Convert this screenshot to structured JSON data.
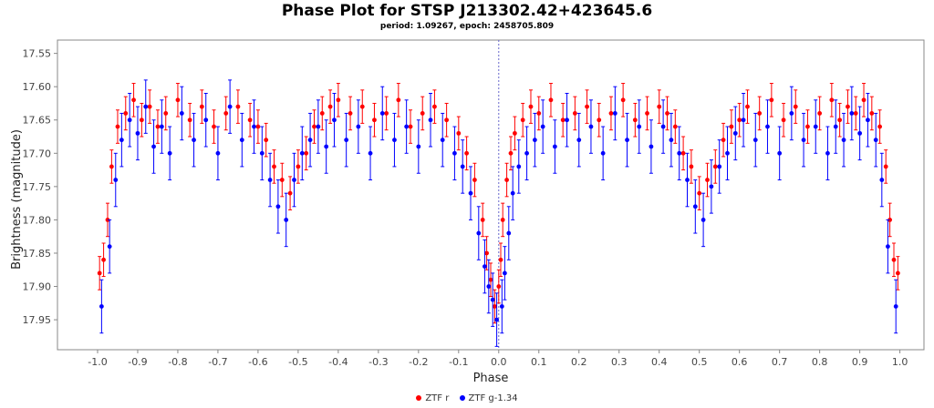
{
  "header": {
    "title": "Phase Plot for STSP J213302.42+423645.6",
    "subtitle": "period: 1.09267, epoch: 2458705.809"
  },
  "chart_data": {
    "type": "scatter",
    "title": "Phase Plot for STSP J213302.42+423645.6",
    "subtitle": "period: 1.09267, epoch: 2458705.809",
    "xlabel": "Phase",
    "ylabel": "Brightness (magnitude)",
    "xlim": [
      -1.1,
      1.06
    ],
    "ylim": [
      17.53,
      17.995
    ],
    "y_inverted": true,
    "grid": false,
    "reference_line_x": 0.0,
    "x_ticks": [
      -1.0,
      -0.9,
      -0.8,
      -0.7,
      -0.6,
      -0.5,
      -0.4,
      -0.3,
      -0.2,
      -0.1,
      0.0,
      0.1,
      0.2,
      0.3,
      0.4,
      0.5,
      0.6,
      0.7,
      0.8,
      0.9,
      1.0
    ],
    "x_tick_labels": [
      "-1.0",
      "-0.9",
      "-0.8",
      "-0.7",
      "-0.6",
      "-0.5",
      "-0.4",
      "-0.3",
      "-0.2",
      "-0.1",
      "0.0",
      "0.1",
      "0.2",
      "0.3",
      "0.4",
      "0.5",
      "0.6",
      "0.7",
      "0.8",
      "0.9",
      "1.0"
    ],
    "y_ticks": [
      17.55,
      17.6,
      17.65,
      17.7,
      17.75,
      17.8,
      17.85,
      17.9,
      17.95
    ],
    "y_tick_labels": [
      "17.55",
      "17.60",
      "17.65",
      "17.70",
      "17.75",
      "17.80",
      "17.85",
      "17.90",
      "17.95"
    ],
    "legend_position": "bottom-center",
    "series": [
      {
        "name": "ZTF r",
        "color": "#ff0000",
        "error": 0.025,
        "x": [
          -0.995,
          -0.985,
          -0.975,
          -0.965,
          -0.95,
          -0.93,
          -0.91,
          -0.89,
          -0.87,
          -0.85,
          -0.83,
          -0.8,
          -0.77,
          -0.74,
          -0.71,
          -0.68,
          -0.65,
          -0.62,
          -0.6,
          -0.58,
          -0.56,
          -0.54,
          -0.52,
          -0.5,
          -0.48,
          -0.46,
          -0.44,
          -0.42,
          -0.4,
          -0.37,
          -0.34,
          -0.31,
          -0.28,
          -0.25,
          -0.22,
          -0.19,
          -0.16,
          -0.13,
          -0.1,
          -0.08,
          -0.06,
          -0.04,
          -0.03,
          -0.02,
          -0.01,
          0.0,
          0.005,
          0.01,
          0.02,
          0.03,
          0.04,
          0.06,
          0.08,
          0.1,
          0.13,
          0.16,
          0.19,
          0.22,
          0.25,
          0.28,
          0.31,
          0.34,
          0.37,
          0.4,
          0.42,
          0.44,
          0.46,
          0.48,
          0.5,
          0.52,
          0.54,
          0.56,
          0.58,
          0.6,
          0.62,
          0.65,
          0.68,
          0.71,
          0.74,
          0.77,
          0.8,
          0.83,
          0.85,
          0.87,
          0.89,
          0.91,
          0.93,
          0.95,
          0.965,
          0.975,
          0.985,
          0.995
        ],
        "y": [
          17.88,
          17.86,
          17.8,
          17.72,
          17.66,
          17.64,
          17.62,
          17.65,
          17.63,
          17.66,
          17.64,
          17.62,
          17.65,
          17.63,
          17.66,
          17.64,
          17.63,
          17.65,
          17.66,
          17.68,
          17.72,
          17.74,
          17.76,
          17.72,
          17.7,
          17.66,
          17.64,
          17.63,
          17.62,
          17.64,
          17.63,
          17.65,
          17.64,
          17.62,
          17.66,
          17.64,
          17.63,
          17.65,
          17.67,
          17.7,
          17.74,
          17.8,
          17.85,
          17.89,
          17.93,
          17.9,
          17.86,
          17.8,
          17.74,
          17.7,
          17.67,
          17.65,
          17.63,
          17.64,
          17.62,
          17.65,
          17.64,
          17.63,
          17.65,
          17.64,
          17.62,
          17.65,
          17.64,
          17.63,
          17.64,
          17.66,
          17.7,
          17.72,
          17.76,
          17.74,
          17.72,
          17.68,
          17.66,
          17.65,
          17.63,
          17.64,
          17.62,
          17.65,
          17.63,
          17.66,
          17.64,
          17.62,
          17.65,
          17.63,
          17.64,
          17.62,
          17.64,
          17.66,
          17.72,
          17.8,
          17.86,
          17.88
        ]
      },
      {
        "name": "ZTF g-1.34",
        "color": "#0000ff",
        "error": 0.04,
        "x": [
          -0.99,
          -0.97,
          -0.955,
          -0.94,
          -0.92,
          -0.9,
          -0.88,
          -0.86,
          -0.84,
          -0.82,
          -0.79,
          -0.76,
          -0.73,
          -0.7,
          -0.67,
          -0.64,
          -0.61,
          -0.59,
          -0.57,
          -0.55,
          -0.53,
          -0.51,
          -0.49,
          -0.47,
          -0.45,
          -0.43,
          -0.41,
          -0.38,
          -0.35,
          -0.32,
          -0.29,
          -0.26,
          -0.23,
          -0.2,
          -0.17,
          -0.14,
          -0.11,
          -0.09,
          -0.07,
          -0.05,
          -0.035,
          -0.025,
          -0.015,
          -0.005,
          0.008,
          0.015,
          0.025,
          0.035,
          0.05,
          0.07,
          0.09,
          0.11,
          0.14,
          0.17,
          0.2,
          0.23,
          0.26,
          0.29,
          0.32,
          0.35,
          0.38,
          0.41,
          0.43,
          0.45,
          0.47,
          0.49,
          0.51,
          0.53,
          0.55,
          0.57,
          0.59,
          0.61,
          0.64,
          0.67,
          0.7,
          0.73,
          0.76,
          0.79,
          0.82,
          0.84,
          0.86,
          0.88,
          0.9,
          0.92,
          0.94,
          0.955,
          0.97,
          0.99
        ],
        "y": [
          17.93,
          17.84,
          17.74,
          17.68,
          17.65,
          17.67,
          17.63,
          17.69,
          17.66,
          17.7,
          17.64,
          17.68,
          17.65,
          17.7,
          17.63,
          17.68,
          17.66,
          17.7,
          17.74,
          17.78,
          17.8,
          17.74,
          17.7,
          17.68,
          17.66,
          17.69,
          17.65,
          17.68,
          17.66,
          17.7,
          17.64,
          17.68,
          17.66,
          17.69,
          17.65,
          17.68,
          17.7,
          17.72,
          17.76,
          17.82,
          17.87,
          17.9,
          17.92,
          17.95,
          17.93,
          17.88,
          17.82,
          17.76,
          17.72,
          17.7,
          17.68,
          17.66,
          17.69,
          17.65,
          17.68,
          17.66,
          17.7,
          17.64,
          17.68,
          17.66,
          17.69,
          17.66,
          17.68,
          17.7,
          17.74,
          17.78,
          17.8,
          17.75,
          17.72,
          17.7,
          17.67,
          17.65,
          17.68,
          17.66,
          17.7,
          17.64,
          17.68,
          17.66,
          17.7,
          17.66,
          17.68,
          17.64,
          17.67,
          17.65,
          17.68,
          17.74,
          17.84,
          17.93
        ]
      }
    ]
  }
}
